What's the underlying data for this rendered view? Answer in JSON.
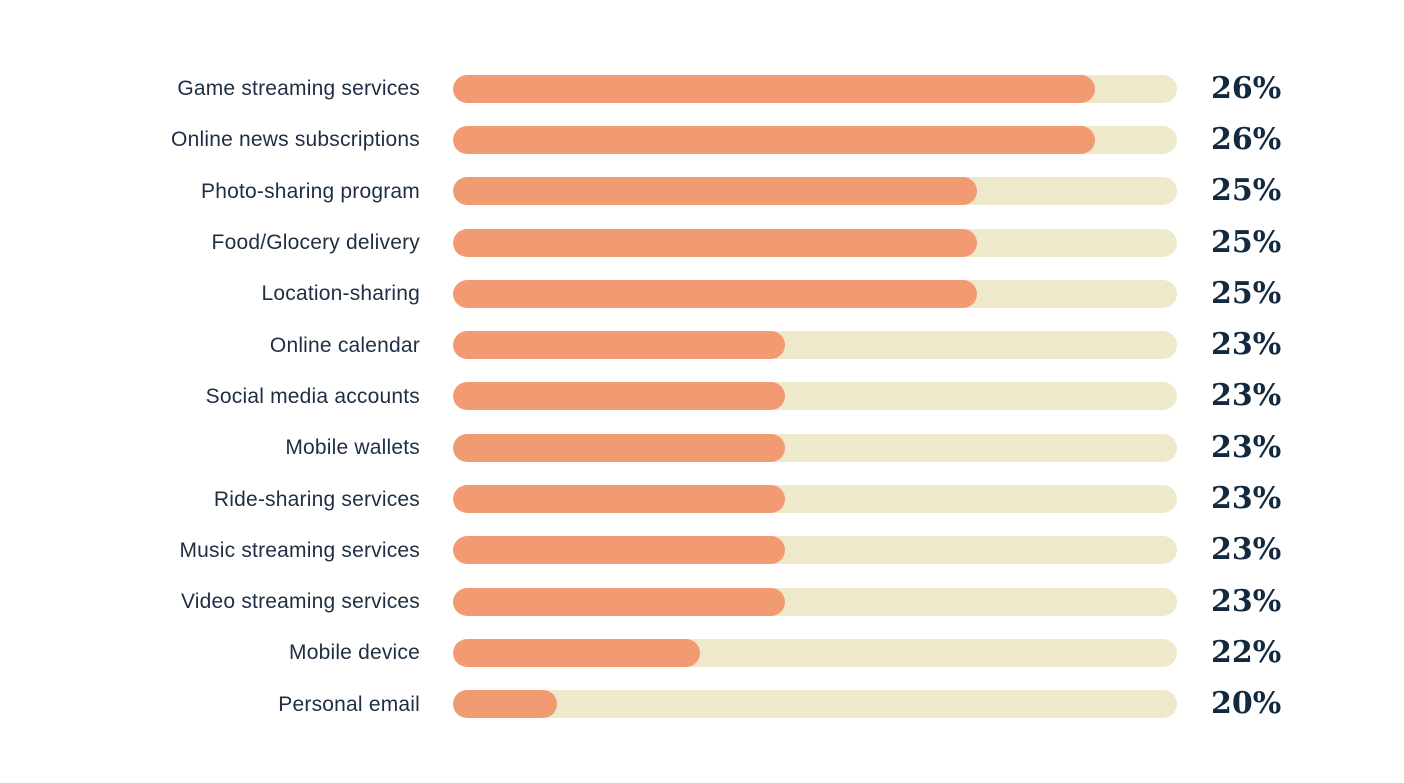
{
  "chart_data": {
    "type": "bar",
    "orientation": "horizontal",
    "title": "",
    "xlabel": "",
    "ylabel": "",
    "grid": false,
    "legend": false,
    "categories": [
      "Game streaming services",
      "Online news subscriptions",
      "Photo-sharing program",
      "Food/Glocery delivery",
      "Location-sharing",
      "Online calendar",
      "Social media accounts",
      "Mobile wallets",
      "Ride-sharing services",
      "Music streaming services",
      "Video streaming services",
      "Mobile device",
      "Personal email"
    ],
    "values": [
      26,
      26,
      25,
      25,
      25,
      23,
      23,
      23,
      23,
      23,
      23,
      22,
      20
    ],
    "value_labels": [
      "26%",
      "26%",
      "25%",
      "25%",
      "25%",
      "23%",
      "23%",
      "23%",
      "23%",
      "23%",
      "23%",
      "22%",
      "20%"
    ],
    "bar_fill_fractions": [
      0.887,
      0.887,
      0.724,
      0.724,
      0.724,
      0.459,
      0.459,
      0.459,
      0.459,
      0.459,
      0.459,
      0.341,
      0.144
    ],
    "colors": {
      "bar_fill": "#f29b72",
      "bar_track": "#efe9cb",
      "label_text": "#1e2f43",
      "value_text": "#13293f",
      "background": "#ffffff"
    }
  }
}
